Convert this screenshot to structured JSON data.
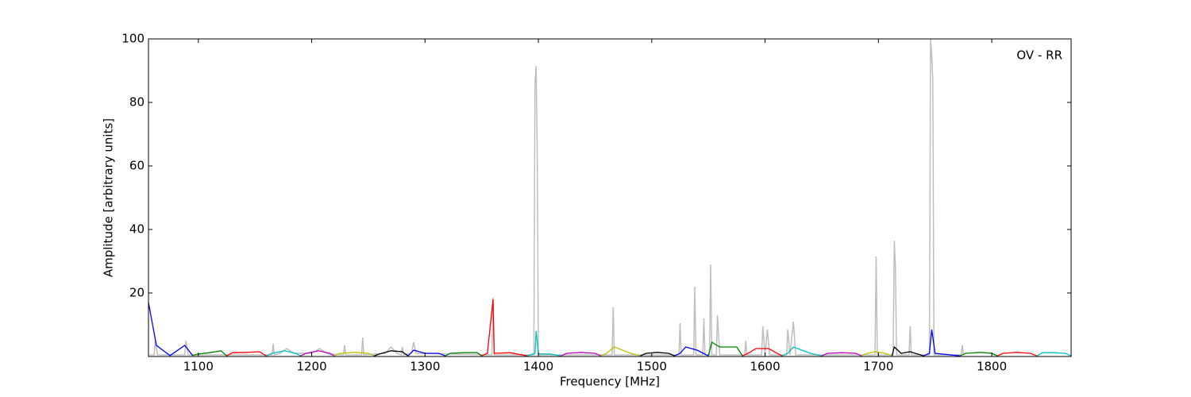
{
  "chart_data": {
    "type": "line",
    "xlabel": "Frequency [MHz]",
    "ylabel": "Amplitude [arbitrary units]",
    "annotation": "OV - RR",
    "xlim": [
      1056,
      1870
    ],
    "ylim": [
      0,
      100
    ],
    "xticks": [
      1100,
      1200,
      1300,
      1400,
      1500,
      1600,
      1700,
      1800
    ],
    "yticks": [
      20,
      40,
      60,
      80,
      100
    ],
    "series": [
      {
        "color": "#bebebe",
        "x": [
          1057,
          1061,
          1062,
          1064,
          1088,
          1089,
          1091,
          1165,
          1166,
          1167,
          1172,
          1178,
          1184,
          1200,
          1207,
          1214,
          1228,
          1229,
          1230,
          1244,
          1245,
          1246,
          1265,
          1270,
          1275,
          1279,
          1280,
          1281,
          1288,
          1290,
          1292,
          1359,
          1360,
          1361,
          1396,
          1397,
          1398,
          1399,
          1400,
          1465,
          1466,
          1467,
          1524,
          1525,
          1526,
          1537,
          1538,
          1539,
          1545,
          1546,
          1547,
          1551,
          1552,
          1553,
          1557,
          1558,
          1560,
          1582,
          1583,
          1584,
          1597,
          1598,
          1600,
          1602,
          1604,
          1619,
          1620,
          1622,
          1625,
          1627,
          1697,
          1698,
          1699,
          1713,
          1714,
          1715,
          1716,
          1727,
          1728,
          1729,
          1745,
          1746,
          1747,
          1748,
          1749,
          1773,
          1774,
          1775
        ],
        "values": [
          0.5,
          0.5,
          5,
          0.5,
          0.5,
          5,
          0.5,
          0.5,
          4,
          0.5,
          1,
          2.5,
          1,
          1,
          2.5,
          0.8,
          0.5,
          3.5,
          0.5,
          0.5,
          6,
          0.5,
          1,
          3,
          1,
          0.5,
          3,
          0.5,
          1,
          4.5,
          1,
          0.5,
          18.5,
          0.5,
          0.5,
          86,
          91.5,
          64,
          0.5,
          0.5,
          15.5,
          0.5,
          0.5,
          10.5,
          0.5,
          0.5,
          22,
          0.5,
          0.5,
          12,
          0.5,
          0.5,
          29,
          0.5,
          0.5,
          13,
          0.5,
          0.5,
          5,
          0.5,
          0.5,
          9.5,
          0.5,
          8.5,
          0.5,
          0.5,
          8.5,
          0.5,
          11,
          0.5,
          0.5,
          31.5,
          0.5,
          0.5,
          36.5,
          28,
          0.5,
          0.5,
          9.5,
          0.5,
          0.5,
          100,
          95,
          87,
          0.5,
          0.5,
          3.5,
          0.5
        ]
      },
      {
        "color": "#0000ff",
        "x": [
          1056,
          1063,
          1075,
          1088,
          1095
        ],
        "values": [
          17,
          3.5,
          0.3,
          3.5,
          0.3
        ]
      },
      {
        "color": "#008000",
        "x": [
          1095,
          1100,
          1110,
          1120,
          1125
        ],
        "values": [
          0.3,
          0.8,
          1.2,
          1.8,
          0.2
        ]
      },
      {
        "color": "#ff0000",
        "x": [
          1125,
          1130,
          1142,
          1154,
          1160
        ],
        "values": [
          0.2,
          1.2,
          1.3,
          1.5,
          0.2
        ]
      },
      {
        "color": "#00bfbf",
        "x": [
          1160,
          1165,
          1176,
          1186,
          1190
        ],
        "values": [
          0.2,
          1,
          1.8,
          1,
          0.2
        ]
      },
      {
        "color": "#bf00bf",
        "x": [
          1190,
          1195,
          1206,
          1216,
          1220
        ],
        "values": [
          0.2,
          1,
          1.8,
          1,
          0.2
        ]
      },
      {
        "color": "#bfbf00",
        "x": [
          1220,
          1225,
          1238,
          1250,
          1255
        ],
        "values": [
          0.2,
          1,
          1.3,
          1,
          0.2
        ]
      },
      {
        "color": "#000000",
        "x": [
          1255,
          1260,
          1270,
          1280,
          1285
        ],
        "values": [
          0.2,
          0.8,
          1.8,
          1.5,
          0.2
        ]
      },
      {
        "color": "#0000ff",
        "x": [
          1285,
          1290,
          1300,
          1312,
          1318
        ],
        "values": [
          0.2,
          2,
          1,
          1,
          0.2
        ]
      },
      {
        "color": "#008000",
        "x": [
          1318,
          1322,
          1334,
          1346,
          1350
        ],
        "values": [
          0.2,
          1,
          1.2,
          1.2,
          0.2
        ]
      },
      {
        "color": "#ff0000",
        "x": [
          1350,
          1355,
          1360,
          1361,
          1375,
          1390
        ],
        "values": [
          0.2,
          1,
          18,
          1,
          1.2,
          0.2
        ]
      },
      {
        "color": "#00bfbf",
        "x": [
          1390,
          1397,
          1398,
          1400,
          1410,
          1420
        ],
        "values": [
          0.2,
          1,
          8,
          0.8,
          0.8,
          0.2
        ]
      },
      {
        "color": "#bf00bf",
        "x": [
          1420,
          1425,
          1438,
          1450,
          1455
        ],
        "values": [
          0.2,
          1,
          1.3,
          1,
          0.2
        ]
      },
      {
        "color": "#bfbf00",
        "x": [
          1455,
          1460,
          1467,
          1480,
          1490
        ],
        "values": [
          0.2,
          1,
          3,
          1.2,
          0.2
        ]
      },
      {
        "color": "#000000",
        "x": [
          1490,
          1495,
          1505,
          1515,
          1520
        ],
        "values": [
          0.2,
          1,
          1.3,
          1,
          0.2
        ]
      },
      {
        "color": "#0000ff",
        "x": [
          1520,
          1525,
          1530,
          1540,
          1550
        ],
        "values": [
          0.2,
          1,
          3,
          2,
          0.2
        ]
      },
      {
        "color": "#008000",
        "x": [
          1550,
          1553,
          1560,
          1575,
          1580
        ],
        "values": [
          0.2,
          4.5,
          3,
          3,
          0.2
        ]
      },
      {
        "color": "#ff0000",
        "x": [
          1580,
          1585,
          1592,
          1603,
          1615
        ],
        "values": [
          0.2,
          1,
          2.5,
          2.5,
          0.2
        ]
      },
      {
        "color": "#00bfbf",
        "x": [
          1615,
          1620,
          1625,
          1640,
          1650
        ],
        "values": [
          0.2,
          1,
          3,
          1,
          0.2
        ]
      },
      {
        "color": "#bf00bf",
        "x": [
          1650,
          1655,
          1668,
          1680,
          1685
        ],
        "values": [
          0.2,
          1,
          1.2,
          1,
          0.2
        ]
      },
      {
        "color": "#bfbf00",
        "x": [
          1685,
          1690,
          1698,
          1706,
          1712
        ],
        "values": [
          0.2,
          1,
          1.5,
          1,
          0.2
        ]
      },
      {
        "color": "#000000",
        "x": [
          1712,
          1714,
          1720,
          1728,
          1740
        ],
        "values": [
          0.2,
          3,
          1,
          1.5,
          0.2
        ]
      },
      {
        "color": "#0000ff",
        "x": [
          1740,
          1745,
          1747,
          1750,
          1772
        ],
        "values": [
          0.2,
          1,
          8.5,
          1,
          0.2
        ]
      },
      {
        "color": "#008000",
        "x": [
          1772,
          1777,
          1790,
          1800,
          1805
        ],
        "values": [
          0.2,
          1,
          1.3,
          1,
          0.2
        ]
      },
      {
        "color": "#ff0000",
        "x": [
          1805,
          1810,
          1822,
          1834,
          1840
        ],
        "values": [
          0.2,
          1,
          1.3,
          1,
          0.2
        ]
      },
      {
        "color": "#00bfbf",
        "x": [
          1840,
          1845,
          1855,
          1865,
          1870
        ],
        "values": [
          0.2,
          1.2,
          1.2,
          1,
          0.2
        ]
      }
    ]
  }
}
